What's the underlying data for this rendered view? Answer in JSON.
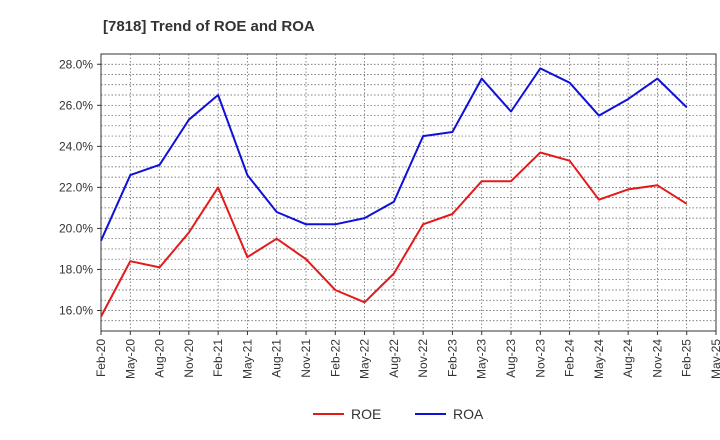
{
  "chart_data": {
    "type": "line",
    "title": "[7818]  Trend of ROE and ROA",
    "xlabel": "",
    "ylabel": "",
    "x": [
      "Feb-20",
      "May-20",
      "Aug-20",
      "Nov-20",
      "Feb-21",
      "May-21",
      "Aug-21",
      "Nov-21",
      "Feb-22",
      "May-22",
      "Aug-22",
      "Nov-22",
      "Feb-23",
      "May-23",
      "Aug-23",
      "Nov-23",
      "Feb-24",
      "May-24",
      "Aug-24",
      "Nov-24",
      "Feb-25",
      "May-25"
    ],
    "ylim": [
      15.0,
      28.5
    ],
    "yticks": [
      16.0,
      18.0,
      20.0,
      22.0,
      24.0,
      26.0,
      28.0
    ],
    "ytick_labels": [
      "16.0%",
      "18.0%",
      "20.0%",
      "22.0%",
      "24.0%",
      "26.0%",
      "28.0%"
    ],
    "grid": true,
    "legend_position": "bottom",
    "series": [
      {
        "name": "ROE",
        "color": "#e31a1c",
        "values": [
          15.7,
          18.4,
          18.1,
          19.8,
          22.0,
          18.6,
          19.5,
          18.5,
          17.0,
          16.4,
          17.8,
          20.2,
          20.7,
          22.3,
          22.3,
          23.7,
          23.3,
          21.4,
          21.9,
          22.1,
          21.2,
          null
        ]
      },
      {
        "name": "ROA",
        "color": "#1010d8",
        "values": [
          19.4,
          22.6,
          23.1,
          25.3,
          26.5,
          22.6,
          20.8,
          20.2,
          20.2,
          20.5,
          21.3,
          24.5,
          24.7,
          27.3,
          25.7,
          27.8,
          27.1,
          25.5,
          26.3,
          27.3,
          25.9,
          null
        ]
      }
    ]
  }
}
